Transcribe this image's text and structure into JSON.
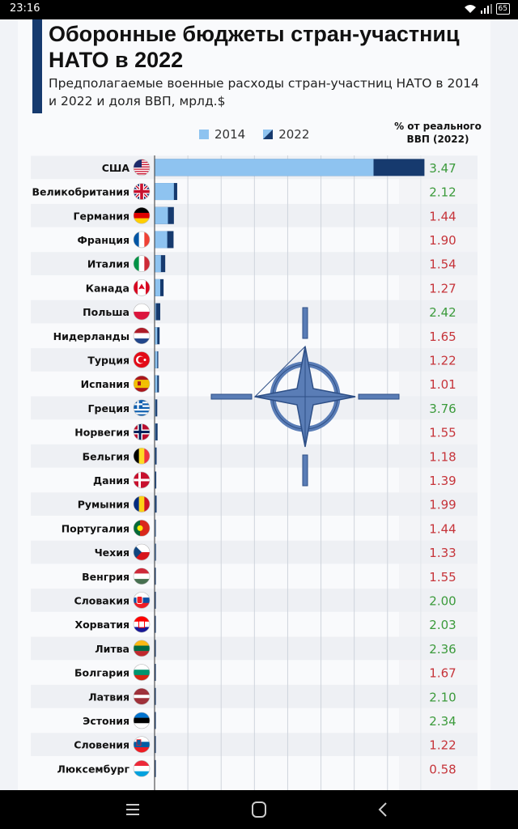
{
  "status_bar": {
    "time": "23:16",
    "battery": "65"
  },
  "header": {
    "title": "Оборонные бюджеты стран-участниц НАТО в 2022",
    "subtitle": "Предполагаемые военные расходы стран-участниц НАТО в 2014 и 2022 и доля ВВП, мрлд.$"
  },
  "legend": {
    "label_2014": "2014",
    "label_2022": "2022"
  },
  "pct_header": {
    "line1": "% от реального",
    "line2": "ВВП (2022)"
  },
  "colors": {
    "bar_2014": "#8ec3f0",
    "bar_2022": "#163a6e",
    "pct_green": "#3b9a3b",
    "pct_red": "#c6343a",
    "row_alt": "#eef0f4"
  },
  "chart_data": {
    "type": "bar",
    "orientation": "horizontal",
    "series": [
      {
        "name": "2014",
        "values": [
          658,
          58,
          40,
          38,
          19,
          17,
          4,
          8,
          8,
          8,
          3,
          3,
          2,
          2,
          2,
          2,
          2,
          1,
          1,
          1,
          0.5,
          0.5,
          0.5,
          0.5,
          0.5,
          0.3
        ]
      },
      {
        "name": "2022",
        "values": [
          811,
          68,
          58,
          57,
          32,
          27,
          17,
          15,
          11,
          13,
          8,
          9,
          6,
          5,
          6,
          3,
          4,
          2,
          2,
          1,
          1,
          1,
          1,
          1,
          1,
          0.5
        ]
      }
    ],
    "xlim": [
      0,
      900
    ],
    "grid": true,
    "rows": [
      {
        "country": "США",
        "pct": "3.47",
        "pct_color": "green",
        "flag": "us-flag-icon"
      },
      {
        "country": "Великобритания",
        "pct": "2.12",
        "pct_color": "green",
        "flag": "uk-flag-icon"
      },
      {
        "country": "Германия",
        "pct": "1.44",
        "pct_color": "red",
        "flag": "de-flag-icon"
      },
      {
        "country": "Франция",
        "pct": "1.90",
        "pct_color": "red",
        "flag": "fr-flag-icon"
      },
      {
        "country": "Италия",
        "pct": "1.54",
        "pct_color": "red",
        "flag": "it-flag-icon"
      },
      {
        "country": "Канада",
        "pct": "1.27",
        "pct_color": "red",
        "flag": "ca-flag-icon"
      },
      {
        "country": "Польша",
        "pct": "2.42",
        "pct_color": "green",
        "flag": "pl-flag-icon"
      },
      {
        "country": "Нидерланды",
        "pct": "1.65",
        "pct_color": "red",
        "flag": "nl-flag-icon"
      },
      {
        "country": "Турция",
        "pct": "1.22",
        "pct_color": "red",
        "flag": "tr-flag-icon"
      },
      {
        "country": "Испания",
        "pct": "1.01",
        "pct_color": "red",
        "flag": "es-flag-icon"
      },
      {
        "country": "Греция",
        "pct": "3.76",
        "pct_color": "green",
        "flag": "gr-flag-icon"
      },
      {
        "country": "Норвегия",
        "pct": "1.55",
        "pct_color": "red",
        "flag": "no-flag-icon"
      },
      {
        "country": "Бельгия",
        "pct": "1.18",
        "pct_color": "red",
        "flag": "be-flag-icon"
      },
      {
        "country": "Дания",
        "pct": "1.39",
        "pct_color": "red",
        "flag": "dk-flag-icon"
      },
      {
        "country": "Румыния",
        "pct": "1.99",
        "pct_color": "red",
        "flag": "ro-flag-icon"
      },
      {
        "country": "Португалия",
        "pct": "1.44",
        "pct_color": "red",
        "flag": "pt-flag-icon"
      },
      {
        "country": "Чехия",
        "pct": "1.33",
        "pct_color": "red",
        "flag": "cz-flag-icon"
      },
      {
        "country": "Венгрия",
        "pct": "1.55",
        "pct_color": "red",
        "flag": "hu-flag-icon"
      },
      {
        "country": "Словакия",
        "pct": "2.00",
        "pct_color": "green",
        "flag": "sk-flag-icon"
      },
      {
        "country": "Хорватия",
        "pct": "2.03",
        "pct_color": "green",
        "flag": "hr-flag-icon"
      },
      {
        "country": "Литва",
        "pct": "2.36",
        "pct_color": "green",
        "flag": "lt-flag-icon"
      },
      {
        "country": "Болгария",
        "pct": "1.67",
        "pct_color": "red",
        "flag": "bg-flag-icon"
      },
      {
        "country": "Латвия",
        "pct": "2.10",
        "pct_color": "green",
        "flag": "lv-flag-icon"
      },
      {
        "country": "Эстония",
        "pct": "2.34",
        "pct_color": "green",
        "flag": "ee-flag-icon"
      },
      {
        "country": "Словения",
        "pct": "1.22",
        "pct_color": "red",
        "flag": "si-flag-icon"
      },
      {
        "country": "Люксембург",
        "pct": "0.58",
        "pct_color": "red",
        "flag": "lu-flag-icon"
      }
    ]
  },
  "watermark": {
    "icon": "nato-star-icon"
  },
  "nav_bar": {
    "buttons": [
      "menu-icon",
      "home-icon",
      "back-icon"
    ]
  }
}
